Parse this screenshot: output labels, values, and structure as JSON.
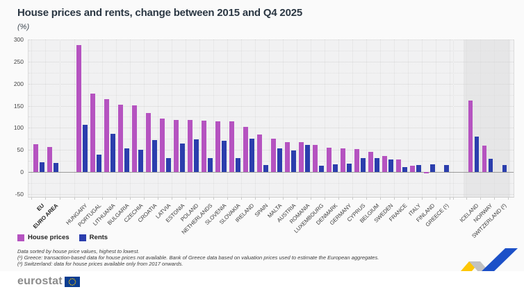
{
  "title": "House prices and rents, change between 2015 and Q4 2025",
  "subtitle": "(%)",
  "legend": {
    "house_label": "House prices",
    "rents_label": "Rents"
  },
  "colors": {
    "house": "#b553c0",
    "rents": "#2b3ead",
    "efta_background": "#e6e6e7",
    "plot_background": "#f1f1f2",
    "ribbon_yellow": "#fdc606",
    "ribbon_gray": "#c2c2c2",
    "ribbon_blue": "#1c50c8",
    "eu_flag_blue": "#0b3d91",
    "eu_flag_stars": "#ffcc00"
  },
  "y_axis": {
    "min": -50,
    "max": 300,
    "labeled_step": 50,
    "grid_step": 25,
    "ticks": [
      300,
      250,
      200,
      150,
      100,
      50,
      0,
      -50
    ]
  },
  "chart_data": {
    "type": "bar",
    "title": "House prices and rents, change between 2015 and Q4 2025",
    "ylabel": "(%)",
    "ylim": [
      -50,
      300
    ],
    "grid": true,
    "legend_position": "bottom-left",
    "categories": [
      "EU",
      "EURO AREA",
      "HUNGARY",
      "PORTUGAL",
      "LITHUANIA",
      "BULGARIA",
      "CZECHIA",
      "CROATIA",
      "LATVIA",
      "ESTONIA",
      "POLAND",
      "NETHERLANDS",
      "SLOVENIA",
      "SLOVAKIA",
      "IRELAND",
      "SPAIN",
      "MALTA",
      "AUSTRIA",
      "ROMANIA",
      "LUXEMBOURG",
      "DENMARK",
      "GERMANY",
      "CYPRUS",
      "BELGIUM",
      "SWEDEN",
      "FRANCE",
      "ITALY",
      "FINLAND",
      "GREECE (¹)",
      "ICELAND",
      "NORWAY",
      "SWITZERLAND (²)"
    ],
    "series": [
      {
        "name": "House prices",
        "values": [
          63,
          56,
          287,
          177,
          165,
          153,
          151,
          134,
          121,
          118,
          118,
          116,
          115,
          114,
          102,
          85,
          76,
          68,
          67,
          62,
          55,
          53,
          52,
          46,
          36,
          28,
          14,
          -3,
          null,
          162,
          60,
          null
        ]
      },
      {
        "name": "Rents",
        "values": [
          22,
          20,
          107,
          39,
          87,
          53,
          50,
          72,
          32,
          65,
          74,
          32,
          71,
          31,
          75,
          15,
          53,
          48,
          61,
          14,
          18,
          19,
          31,
          32,
          28,
          11,
          16,
          17,
          16,
          80,
          30,
          15
        ]
      }
    ],
    "sections": [
      {
        "name": "aggregates",
        "start": 0,
        "count": 2,
        "bold_labels": true,
        "shaded": false
      },
      {
        "name": "eu-members",
        "start": 2,
        "count": 27,
        "bold_labels": false,
        "shaded": false
      },
      {
        "name": "efta",
        "start": 29,
        "count": 3,
        "bold_labels": false,
        "shaded": true
      }
    ]
  },
  "footnotes": [
    "Data sorted by house price values, highest to lowest.",
    "(¹) Greece: transaction-based data for house prices not available. Bank of Greece data based on valuation prices used to estimate the European aggregates.",
    "(²) Switzerland: data for house prices available only from 2017 onwards."
  ],
  "footer": {
    "logo_text": "eurostat"
  }
}
